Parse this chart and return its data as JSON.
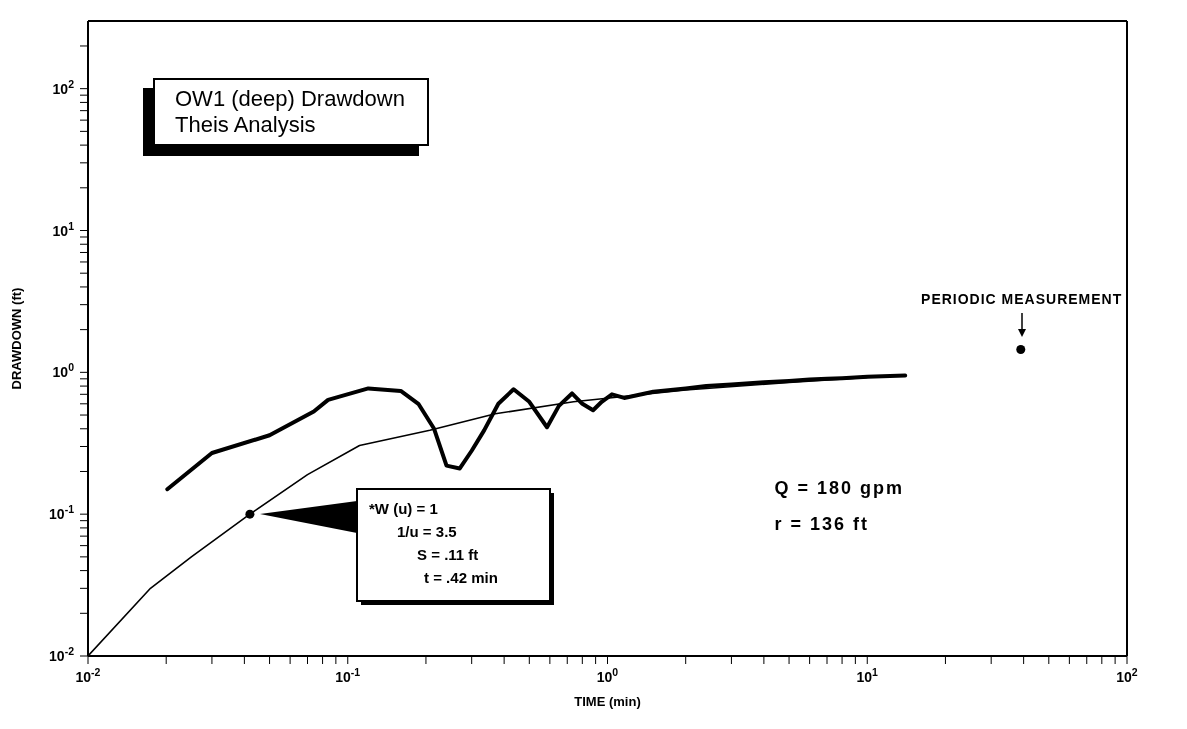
{
  "chart_data": {
    "type": "line",
    "title": "OW1 (deep) Drawdown",
    "subtitle": "Theis Analysis",
    "xlabel": "TIME (min)",
    "ylabel": "DRAWDOWN (ft)",
    "series": [
      {
        "color": "#000000",
        "x": [
          0.0202,
          0.03,
          0.05,
          0.074,
          0.084,
          0.12,
          0.16,
          0.187,
          0.215,
          0.24,
          0.27,
          0.3,
          0.335,
          0.38,
          0.435,
          0.5,
          0.585,
          0.65,
          0.73,
          0.8,
          0.88,
          0.95,
          1.04,
          1.16,
          1.5,
          2,
          2.4,
          3,
          4,
          5,
          6,
          7,
          8,
          10,
          14
        ],
        "values": [
          0.15,
          0.27,
          0.36,
          0.53,
          0.64,
          0.77,
          0.74,
          0.6,
          0.4,
          0.22,
          0.21,
          0.28,
          0.39,
          0.6,
          0.76,
          0.62,
          0.41,
          0.58,
          0.71,
          0.6,
          0.54,
          0.62,
          0.7,
          0.66,
          0.73,
          0.77,
          0.8,
          0.82,
          0.85,
          0.87,
          0.89,
          0.9,
          0.91,
          0.93,
          0.95
        ]
      },
      {
        "color": "#000000",
        "x": [
          0.01,
          0.0174,
          0.025,
          0.042,
          0.07,
          0.111,
          0.207,
          0.37,
          0.74,
          2,
          5,
          10
        ],
        "values": [
          0.01,
          0.03,
          0.05,
          0.1,
          0.19,
          0.305,
          0.39,
          0.51,
          0.62,
          0.75,
          0.85,
          0.92
        ]
      },
      {
        "type": "scatter",
        "color": "#000000",
        "marker": "circle",
        "x": [
          0.042
        ],
        "values": [
          0.1
        ]
      },
      {
        "type": "scatter",
        "color": "#000000",
        "marker": "circle",
        "x": [
          39
        ],
        "values": [
          1.45
        ]
      }
    ],
    "xlim": [
      0.01,
      100
    ],
    "ylim": [
      0.01,
      300
    ],
    "xticks": [
      {
        "value": 0.01,
        "label": "10$^{-2}$"
      },
      {
        "value": 0.02,
        "label": null
      },
      {
        "value": 0.03,
        "label": null
      },
      {
        "value": 0.04,
        "label": null
      },
      {
        "value": 0.05,
        "label": null
      },
      {
        "value": 0.06,
        "label": null
      },
      {
        "value": 0.07,
        "label": null
      },
      {
        "value": 0.08,
        "label": null
      },
      {
        "value": 0.09,
        "label": null
      },
      {
        "value": 0.1,
        "label": "10$^{-1}$"
      },
      {
        "value": 0.2,
        "label": null
      },
      {
        "value": 0.3,
        "label": null
      },
      {
        "value": 0.4,
        "label": null
      },
      {
        "value": 0.5,
        "label": null
      },
      {
        "value": 0.6,
        "label": null
      },
      {
        "value": 0.7,
        "label": null
      },
      {
        "value": 0.8,
        "label": null
      },
      {
        "value": 0.9,
        "label": null
      },
      {
        "value": 1,
        "label": "10$^{0}$"
      },
      {
        "value": 2,
        "label": null
      },
      {
        "value": 3,
        "label": null
      },
      {
        "value": 4,
        "label": null
      },
      {
        "value": 5,
        "label": null
      },
      {
        "value": 6,
        "label": null
      },
      {
        "value": 7,
        "label": null
      },
      {
        "value": 8,
        "label": null
      },
      {
        "value": 9,
        "label": null
      },
      {
        "value": 10,
        "label": "10$^{1}$"
      },
      {
        "value": 20,
        "label": null
      },
      {
        "value": 30,
        "label": null
      },
      {
        "value": 40,
        "label": null
      },
      {
        "value": 50,
        "label": null
      },
      {
        "value": 60,
        "label": null
      },
      {
        "value": 70,
        "label": null
      },
      {
        "value": 80,
        "label": null
      },
      {
        "value": 90,
        "label": null
      },
      {
        "value": 100,
        "label": "10$^{2}$"
      }
    ],
    "yticks": [
      {
        "value": 0.01,
        "label": "10$^{-2}$"
      },
      {
        "value": 0.02,
        "label": null
      },
      {
        "value": 0.03,
        "label": null
      },
      {
        "value": 0.04,
        "label": null
      },
      {
        "value": 0.05,
        "label": null
      },
      {
        "value": 0.06,
        "label": null
      },
      {
        "value": 0.07,
        "label": null
      },
      {
        "value": 0.08,
        "label": null
      },
      {
        "value": 0.09,
        "label": null
      },
      {
        "value": 0.1,
        "label": "10$^{-1}$"
      },
      {
        "value": 0.2,
        "label": null
      },
      {
        "value": 0.3,
        "label": null
      },
      {
        "value": 0.4,
        "label": null
      },
      {
        "value": 0.5,
        "label": null
      },
      {
        "value": 0.6,
        "label": null
      },
      {
        "value": 0.7,
        "label": null
      },
      {
        "value": 0.8,
        "label": null
      },
      {
        "value": 0.9,
        "label": null
      },
      {
        "value": 1,
        "label": "10$^{0}$"
      },
      {
        "value": 2,
        "label": null
      },
      {
        "value": 3,
        "label": null
      },
      {
        "value": 4,
        "label": null
      },
      {
        "value": 5,
        "label": null
      },
      {
        "value": 6,
        "label": null
      },
      {
        "value": 7,
        "label": null
      },
      {
        "value": 8,
        "label": null
      },
      {
        "value": 9,
        "label": null
      },
      {
        "value": 10,
        "label": "10$^{1}$"
      },
      {
        "value": 20,
        "label": null
      },
      {
        "value": 30,
        "label": null
      },
      {
        "value": 40,
        "label": null
      },
      {
        "value": 50,
        "label": null
      },
      {
        "value": 60,
        "label": null
      },
      {
        "value": 70,
        "label": null
      },
      {
        "value": 80,
        "label": null
      },
      {
        "value": 90,
        "label": null
      },
      {
        "value": 100,
        "label": "10$^{2}$"
      },
      {
        "value": 200,
        "label": null
      }
    ],
    "log": "xy",
    "grid": false,
    "marker": "none",
    "line_style": "solid",
    "annotations": [
      "PERIODIC MEASUREMENT",
      "*W (u) = 1\n1/u = 3.5\nS = .11 ft\nt = .42 min",
      "Q = 180 gpm",
      "r = 136 ft"
    ]
  }
}
